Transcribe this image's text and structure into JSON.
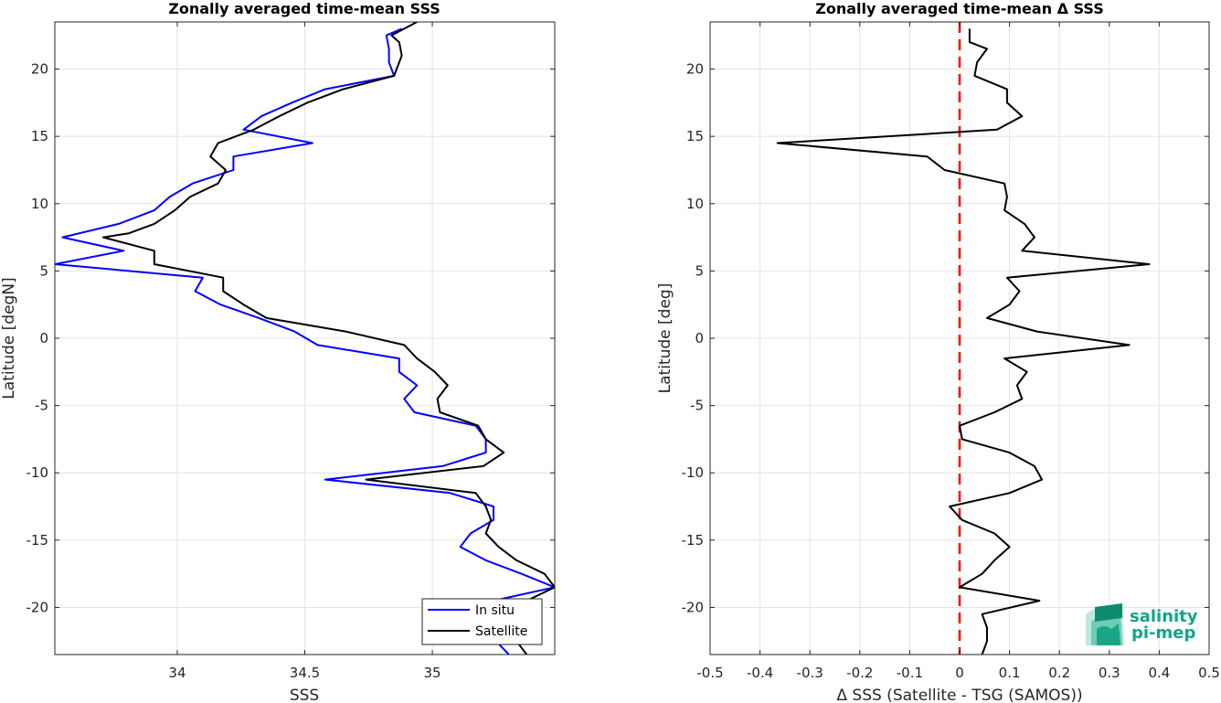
{
  "chart_data": [
    {
      "type": "line",
      "title": "Zonally averaged time-mean SSS",
      "xlabel": "SSS",
      "ylabel": "Latitude [degN]",
      "xlim": [
        33.52,
        35.48
      ],
      "ylim": [
        -23.5,
        23.5
      ],
      "xticks": [
        34,
        34.5,
        35
      ],
      "xtick_labels": [
        "34",
        "34.5",
        "35"
      ],
      "yticks": [
        -20,
        -15,
        -10,
        -5,
        0,
        5,
        10,
        15,
        20
      ],
      "ytick_labels": [
        "-20",
        "-15",
        "-10",
        "-5",
        "0",
        "5",
        "10",
        "15",
        "20"
      ],
      "grid": true,
      "legend": {
        "placement": "bottom-right",
        "entries": [
          "In situ",
          "Satellite"
        ]
      },
      "series": [
        {
          "name": "In situ",
          "color": "#0000ff",
          "points": [
            [
              34.88,
              23.0
            ],
            [
              34.82,
              22.5
            ],
            [
              34.83,
              21.5
            ],
            [
              34.83,
              20.5
            ],
            [
              34.85,
              19.5
            ],
            [
              34.58,
              18.5
            ],
            [
              34.45,
              17.5
            ],
            [
              34.33,
              16.5
            ],
            [
              34.26,
              15.5
            ],
            [
              34.53,
              14.5
            ],
            [
              34.22,
              13.5
            ],
            [
              34.22,
              12.5
            ],
            [
              34.14,
              12.0
            ],
            [
              34.06,
              11.5
            ],
            [
              33.97,
              10.5
            ],
            [
              33.91,
              9.5
            ],
            [
              33.77,
              8.5
            ],
            [
              33.55,
              7.5
            ],
            [
              33.79,
              6.5
            ],
            [
              33.52,
              5.5
            ],
            [
              34.1,
              4.5
            ],
            [
              34.07,
              3.5
            ],
            [
              34.17,
              2.5
            ],
            [
              34.32,
              1.5
            ],
            [
              34.46,
              0.5
            ],
            [
              34.55,
              -0.5
            ],
            [
              34.87,
              -1.5
            ],
            [
              34.87,
              -2.5
            ],
            [
              34.94,
              -3.5
            ],
            [
              34.89,
              -4.5
            ],
            [
              34.93,
              -5.5
            ],
            [
              35.17,
              -6.5
            ],
            [
              35.21,
              -7.5
            ],
            [
              35.21,
              -8.5
            ],
            [
              35.04,
              -9.5
            ],
            [
              34.58,
              -10.5
            ],
            [
              35.07,
              -11.5
            ],
            [
              35.24,
              -12.5
            ],
            [
              35.24,
              -13.5
            ],
            [
              35.15,
              -14.5
            ],
            [
              35.11,
              -15.5
            ],
            [
              35.21,
              -16.5
            ],
            [
              35.35,
              -17.5
            ],
            [
              35.48,
              -18.5
            ],
            [
              35.24,
              -19.5
            ],
            [
              35.26,
              -21.0
            ],
            [
              35.25,
              -22.5
            ],
            [
              35.3,
              -23.5
            ]
          ]
        },
        {
          "name": "Satellite",
          "color": "#000000",
          "points": [
            [
              34.94,
              23.5
            ],
            [
              34.84,
              22.5
            ],
            [
              34.87,
              22.0
            ],
            [
              34.88,
              21.0
            ],
            [
              34.85,
              19.5
            ],
            [
              34.65,
              18.5
            ],
            [
              34.51,
              17.5
            ],
            [
              34.4,
              16.5
            ],
            [
              34.3,
              15.5
            ],
            [
              34.16,
              14.5
            ],
            [
              34.13,
              13.5
            ],
            [
              34.19,
              12.5
            ],
            [
              34.16,
              11.5
            ],
            [
              34.05,
              10.5
            ],
            [
              33.99,
              9.5
            ],
            [
              33.91,
              8.5
            ],
            [
              33.81,
              7.8
            ],
            [
              33.71,
              7.5
            ],
            [
              33.91,
              6.5
            ],
            [
              33.91,
              5.5
            ],
            [
              34.18,
              4.5
            ],
            [
              34.18,
              3.5
            ],
            [
              34.26,
              2.5
            ],
            [
              34.35,
              1.5
            ],
            [
              34.66,
              0.5
            ],
            [
              34.89,
              -0.5
            ],
            [
              34.94,
              -1.5
            ],
            [
              35.01,
              -2.5
            ],
            [
              35.06,
              -3.5
            ],
            [
              35.02,
              -4.5
            ],
            [
              35.03,
              -5.5
            ],
            [
              35.18,
              -6.5
            ],
            [
              35.21,
              -7.5
            ],
            [
              35.28,
              -8.5
            ],
            [
              35.2,
              -9.5
            ],
            [
              34.74,
              -10.5
            ],
            [
              35.17,
              -11.5
            ],
            [
              35.21,
              -12.5
            ],
            [
              35.23,
              -13.5
            ],
            [
              35.21,
              -14.5
            ],
            [
              35.26,
              -15.5
            ],
            [
              35.33,
              -16.5
            ],
            [
              35.44,
              -17.5
            ],
            [
              35.48,
              -18.5
            ],
            [
              35.37,
              -19.5
            ],
            [
              35.31,
              -20.5
            ],
            [
              35.33,
              -21.5
            ],
            [
              35.33,
              -22.5
            ],
            [
              35.37,
              -23.5
            ]
          ]
        }
      ]
    },
    {
      "type": "line",
      "title": "Zonally averaged time-mean Δ SSS",
      "xlabel": "Δ SSS (Satellite - TSG (SAMOS))",
      "ylabel": "Latitude [deg]",
      "xlim": [
        -0.5,
        0.5
      ],
      "ylim": [
        -23.5,
        23.5
      ],
      "xticks": [
        -0.5,
        -0.4,
        -0.3,
        -0.2,
        -0.1,
        0,
        0.1,
        0.2,
        0.3,
        0.4,
        0.5
      ],
      "xtick_labels": [
        "-0.5",
        "-0.4",
        "-0.3",
        "-0.2",
        "-0.1",
        "0",
        "0.1",
        "0.2",
        "0.3",
        "0.4",
        "0.5"
      ],
      "yticks": [
        -20,
        -15,
        -10,
        -5,
        0,
        5,
        10,
        15,
        20
      ],
      "ytick_labels": [
        "-20",
        "-15",
        "-10",
        "-5",
        "0",
        "5",
        "10",
        "15",
        "20"
      ],
      "grid": true,
      "reference_line": {
        "x": 0,
        "color": "#ff0000",
        "style": "dashed"
      },
      "series": [
        {
          "color": "#000000",
          "points": [
            [
              0.02,
              23.0
            ],
            [
              0.02,
              22.0
            ],
            [
              0.055,
              21.5
            ],
            [
              0.035,
              20.5
            ],
            [
              0.03,
              19.5
            ],
            [
              0.095,
              18.5
            ],
            [
              0.095,
              17.5
            ],
            [
              0.125,
              16.5
            ],
            [
              0.075,
              15.5
            ],
            [
              -0.365,
              14.5
            ],
            [
              -0.065,
              13.5
            ],
            [
              -0.03,
              12.5
            ],
            [
              0.09,
              11.5
            ],
            [
              0.095,
              10.5
            ],
            [
              0.09,
              9.5
            ],
            [
              0.13,
              8.5
            ],
            [
              0.15,
              7.5
            ],
            [
              0.125,
              6.5
            ],
            [
              0.38,
              5.5
            ],
            [
              0.095,
              4.5
            ],
            [
              0.12,
              3.5
            ],
            [
              0.1,
              2.5
            ],
            [
              0.055,
              1.5
            ],
            [
              0.155,
              0.5
            ],
            [
              0.34,
              -0.5
            ],
            [
              0.09,
              -1.5
            ],
            [
              0.135,
              -2.5
            ],
            [
              0.115,
              -3.5
            ],
            [
              0.125,
              -4.5
            ],
            [
              0.07,
              -5.5
            ],
            [
              0.0,
              -6.5
            ],
            [
              0.005,
              -7.5
            ],
            [
              0.1,
              -8.5
            ],
            [
              0.15,
              -9.5
            ],
            [
              0.165,
              -10.5
            ],
            [
              0.1,
              -11.5
            ],
            [
              -0.02,
              -12.5
            ],
            [
              0.005,
              -13.5
            ],
            [
              0.07,
              -14.5
            ],
            [
              0.1,
              -15.5
            ],
            [
              0.07,
              -16.5
            ],
            [
              0.045,
              -17.5
            ],
            [
              0.0,
              -18.5
            ],
            [
              0.16,
              -19.5
            ],
            [
              0.045,
              -20.5
            ],
            [
              0.055,
              -21.5
            ],
            [
              0.055,
              -22.5
            ],
            [
              0.045,
              -23.5
            ]
          ]
        }
      ]
    }
  ],
  "logo": {
    "line1": "salinity",
    "line2": "pi-mep",
    "color": "#12a58a"
  }
}
